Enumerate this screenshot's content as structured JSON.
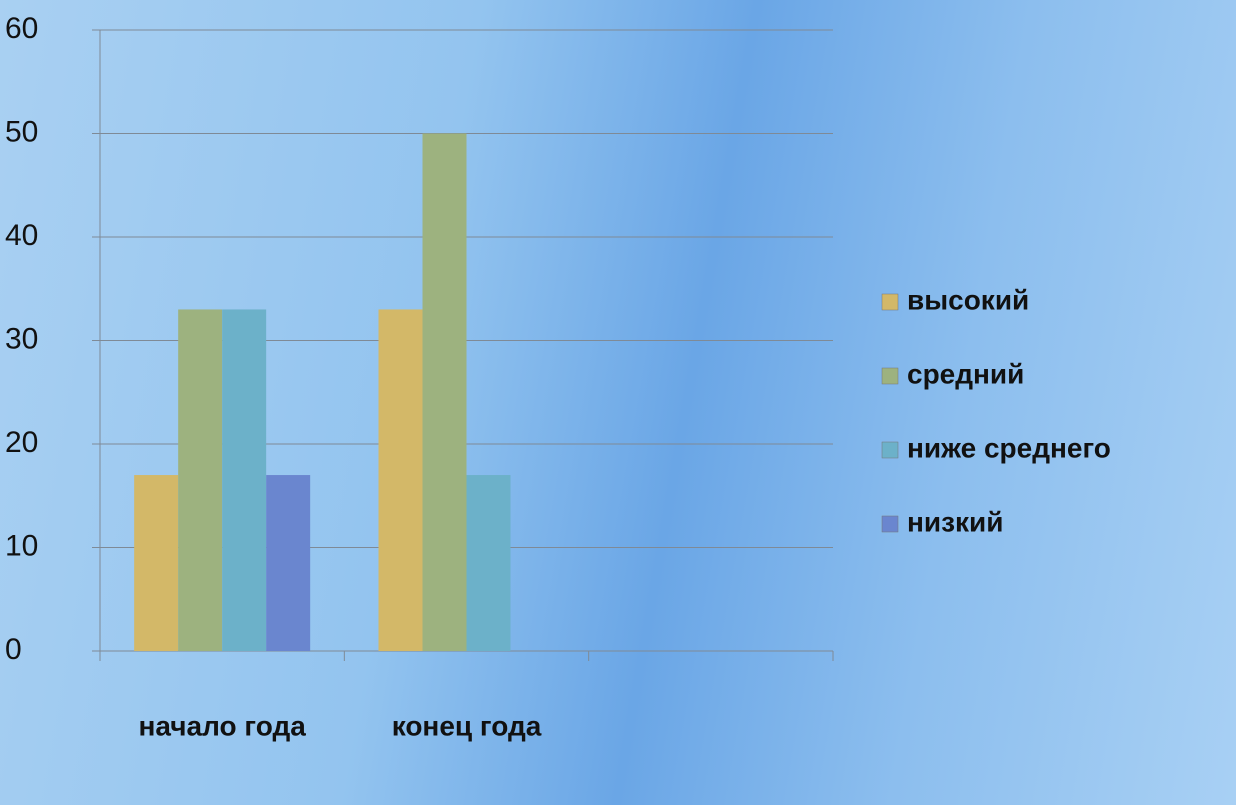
{
  "chart_data": {
    "type": "bar",
    "categories": [
      "начало года",
      "конец года",
      null
    ],
    "series": [
      {
        "name": "высокий",
        "color": "#d3b868",
        "values": [
          17,
          33,
          null
        ]
      },
      {
        "name": "средний",
        "color": "#9db27f",
        "values": [
          33,
          50,
          null
        ]
      },
      {
        "name": "ниже среднего",
        "color": "#6cb1c9",
        "values": [
          33,
          17,
          null
        ]
      },
      {
        "name": "низкий",
        "color": "#6a86cf",
        "values": [
          17,
          0,
          null
        ]
      }
    ],
    "ylim": [
      0,
      60
    ],
    "yticks": [
      0,
      10,
      20,
      30,
      40,
      50,
      60
    ],
    "grid": true,
    "legend": "right"
  }
}
